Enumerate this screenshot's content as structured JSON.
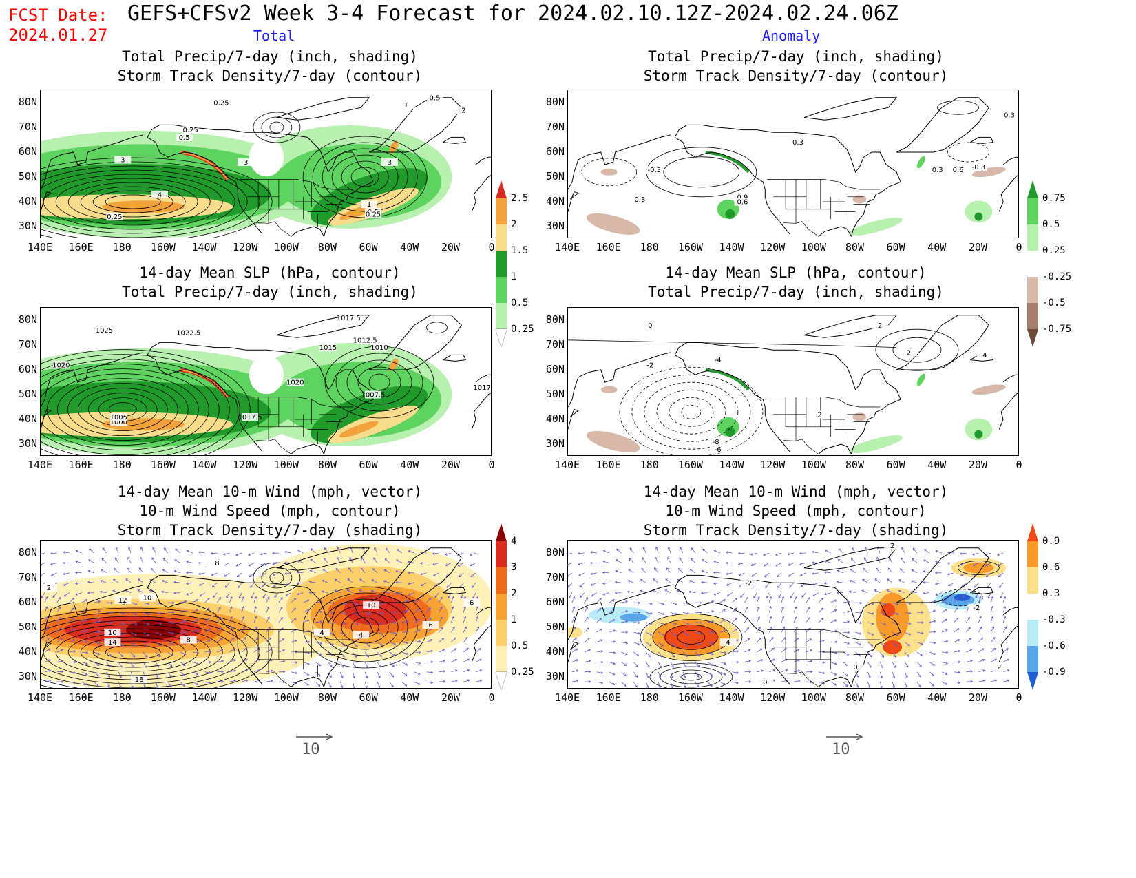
{
  "header": {
    "fcst_label": "FCST Date:",
    "fcst_date": "2024.01.27",
    "title": "GEFS+CFSv2 Week 3-4 Forecast for 2024.02.10.12Z-2024.02.24.06Z",
    "col_total": "Total",
    "col_anomaly": "Anomaly"
  },
  "panels": {
    "p1": {
      "line1": "Total Precip/7-day (inch, shading)",
      "line2": "Storm Track Density/7-day (contour)",
      "line3": ""
    },
    "p2": {
      "line1": "Total Precip/7-day (inch, shading)",
      "line2": "Storm Track Density/7-day (contour)",
      "line3": ""
    },
    "p3": {
      "line1": "14-day Mean SLP (hPa, contour)",
      "line2": "Total Precip/7-day (inch, shading)",
      "line3": ""
    },
    "p4": {
      "line1": "14-day Mean SLP (hPa, contour)",
      "line2": "Total Precip/7-day (inch, shading)",
      "line3": ""
    },
    "p5": {
      "line1": "14-day Mean 10-m Wind (mph, vector)",
      "line2": "10-m Wind Speed (mph, contour)",
      "line3": "Storm Track Density/7-day (shading)"
    },
    "p6": {
      "line1": "14-day Mean 10-m Wind (mph, vector)",
      "line2": "10-m Wind Speed (mph, contour)",
      "line3": "Storm Track Density/7-day (shading)"
    }
  },
  "axes": {
    "lat_labels": [
      "80N",
      "70N",
      "60N",
      "50N",
      "40N",
      "30N"
    ],
    "lon_labels": [
      "140E",
      "160E",
      "180",
      "160W",
      "140W",
      "120W",
      "100W",
      "80W",
      "60W",
      "40W",
      "20W",
      "0"
    ]
  },
  "colorbars": {
    "precip_total": {
      "labels": [
        "2.5",
        "2",
        "1.5",
        "1",
        "0.5",
        "0.25"
      ],
      "colors": [
        "#d62a1e",
        "#f2a23c",
        "#f7dc8c",
        "#1f9a2b",
        "#5fd35f",
        "#b8f0b0"
      ]
    },
    "precip_anom": {
      "labels": [
        "0.75",
        "0.5",
        "0.25",
        "-0.25",
        "-0.5",
        "-0.75"
      ],
      "colors": [
        "#1f9a2b",
        "#5fd35f",
        "#b8f0b0",
        "#ffffff",
        "#d8b8a8",
        "#a67f6c",
        "#6e4a3a"
      ]
    },
    "storm_total": {
      "labels": [
        "4",
        "3",
        "2",
        "1",
        "0.5",
        "0.25"
      ],
      "colors": [
        "#8b0000",
        "#d92d20",
        "#ef6c1f",
        "#f7a234",
        "#fbd06b",
        "#fdf1b8"
      ]
    },
    "storm_anom": {
      "labels": [
        "0.9",
        "0.6",
        "0.3",
        "-0.3",
        "-0.6",
        "-0.9"
      ],
      "colors": [
        "#ef4a16",
        "#f79a2a",
        "#fde18a",
        "#ffffff",
        "#b9ecf7",
        "#5aa5e8",
        "#1f5fcf"
      ]
    }
  },
  "contour_labels": {
    "p1": [
      "0.5",
      "1",
      "2",
      "0.25",
      "0.25",
      "0.5",
      "3",
      "3",
      "4",
      "0.25",
      "1",
      "0.5",
      "0.25",
      "3"
    ],
    "p2": [
      "0.3",
      "-0.3",
      "0.3",
      "0.9",
      "0.6",
      "0.3",
      "-0.3",
      "0.3",
      "0.6"
    ],
    "p3": [
      "1025",
      "1022.5",
      "1017.5",
      "1012.5",
      "1015",
      "1010",
      "1020",
      "1007.5",
      "1017.5",
      "1000",
      "1005",
      "1017",
      "1020"
    ],
    "p4": [
      "0",
      "-2",
      "-4",
      "2",
      "4",
      "-8",
      "-6",
      "-2",
      "2"
    ],
    "p5": [
      "12",
      "10",
      "10",
      "14",
      "8",
      "8",
      "6",
      "10",
      "6",
      "4",
      "2",
      "18",
      "4"
    ],
    "p6": [
      "2",
      "4",
      "-2",
      "0",
      "2",
      "-2",
      "0"
    ]
  },
  "vector_ref": {
    "left": "10",
    "right": "10"
  }
}
